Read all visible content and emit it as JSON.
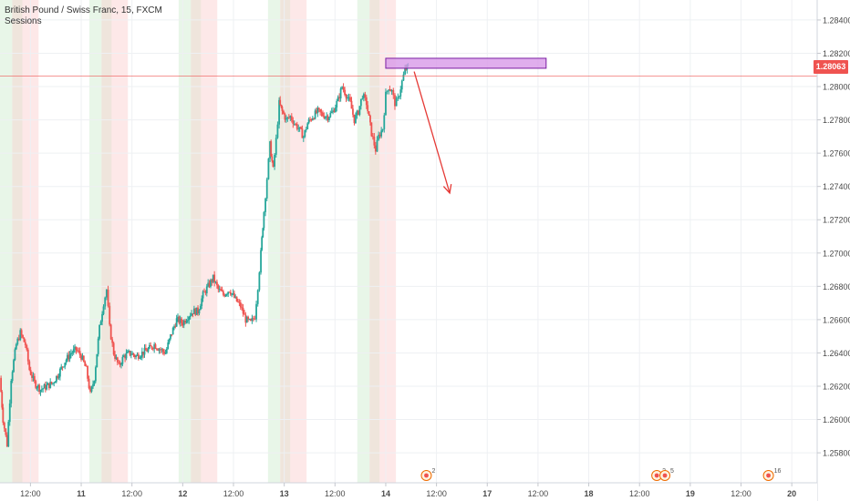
{
  "header": {
    "title": "British Pound / Swiss Franc, 15, FXCM",
    "indicator": "Sessions"
  },
  "price_axis": {
    "current_price": "1.28063"
  },
  "events": [
    {
      "x": "16.45",
      "label": "2",
      "icon": "calendar-event-icon"
    },
    {
      "x": "18.72",
      "label": "2",
      "icon": "calendar-event-icon"
    },
    {
      "x": "18.80",
      "label": "5",
      "icon": "calendar-event-icon"
    },
    {
      "x": "19.82",
      "label": "16",
      "icon": "calendar-event-icon"
    },
    {
      "x": "20.72",
      "label": "",
      "icon": "add-event-icon"
    }
  ],
  "colors": {
    "up": "#26a69a",
    "down": "#ef5350",
    "session_green": "#d6eed6",
    "session_brown": "#e2cfbf",
    "session_red": "#fbd5d5",
    "zone_fill": "#d89ae8",
    "zone_stroke": "#7b1fa2",
    "arrow": "#e53935",
    "price_line": "#ef5350"
  },
  "chart_data": {
    "type": "candlestick",
    "title": "British Pound / Swiss Franc, 15, FXCM",
    "timeframe": "15",
    "x_unit": "day of month (fractional)",
    "x_ticks": [
      "12:00",
      "11",
      "12:00",
      "12",
      "12:00",
      "13",
      "12:00",
      "14",
      "12:00",
      "17",
      "12:00",
      "18",
      "12:00",
      "19",
      "12:00",
      "20"
    ],
    "x_tick_values": [
      10.5,
      11,
      11.5,
      12,
      12.5,
      13,
      13.5,
      14,
      14.5,
      15,
      15.5,
      16,
      16.5,
      17,
      17.5,
      18
    ],
    "y_ticks": [
      "1.25800",
      "1.26000",
      "1.26200",
      "1.26400",
      "1.26600",
      "1.26800",
      "1.27000",
      "1.27200",
      "1.27400",
      "1.27600",
      "1.27800",
      "1.28000",
      "1.28200",
      "1.28400"
    ],
    "ylim": [
      1.2562,
      1.2852
    ],
    "xlim": [
      10.2,
      18.25
    ],
    "grid": true,
    "last_price": 1.28063,
    "price_path": [
      [
        10.2,
        1.2625
      ],
      [
        10.23,
        1.26
      ],
      [
        10.27,
        1.2585
      ],
      [
        10.31,
        1.2625
      ],
      [
        10.36,
        1.2645
      ],
      [
        10.4,
        1.2652
      ],
      [
        10.45,
        1.2645
      ],
      [
        10.49,
        1.263
      ],
      [
        10.54,
        1.2622
      ],
      [
        10.6,
        1.2618
      ],
      [
        10.66,
        1.262
      ],
      [
        10.72,
        1.2622
      ],
      [
        10.78,
        1.2628
      ],
      [
        10.84,
        1.2635
      ],
      [
        10.9,
        1.264
      ],
      [
        10.95,
        1.2642
      ],
      [
        11.0,
        1.2638
      ],
      [
        11.05,
        1.263
      ],
      [
        11.09,
        1.2615
      ],
      [
        11.13,
        1.2625
      ],
      [
        11.18,
        1.2655
      ],
      [
        11.22,
        1.267
      ],
      [
        11.25,
        1.2678
      ],
      [
        11.28,
        1.2655
      ],
      [
        11.32,
        1.264
      ],
      [
        11.37,
        1.2632
      ],
      [
        11.42,
        1.2638
      ],
      [
        11.48,
        1.264
      ],
      [
        11.54,
        1.2638
      ],
      [
        11.6,
        1.264
      ],
      [
        11.66,
        1.2642
      ],
      [
        11.72,
        1.2645
      ],
      [
        11.78,
        1.2642
      ],
      [
        11.83,
        1.264
      ],
      [
        11.88,
        1.265
      ],
      [
        11.94,
        1.266
      ],
      [
        12.0,
        1.2658
      ],
      [
        12.05,
        1.2662
      ],
      [
        12.1,
        1.2665
      ],
      [
        12.15,
        1.2665
      ],
      [
        12.2,
        1.2675
      ],
      [
        12.25,
        1.268
      ],
      [
        12.3,
        1.2685
      ],
      [
        12.35,
        1.2678
      ],
      [
        12.4,
        1.2675
      ],
      [
        12.46,
        1.2678
      ],
      [
        12.52,
        1.2672
      ],
      [
        12.57,
        1.2668
      ],
      [
        12.62,
        1.266
      ],
      [
        12.67,
        1.2658
      ],
      [
        12.71,
        1.2662
      ],
      [
        12.74,
        1.268
      ],
      [
        12.77,
        1.27
      ],
      [
        12.8,
        1.2725
      ],
      [
        12.83,
        1.2745
      ],
      [
        12.86,
        1.2765
      ],
      [
        12.89,
        1.275
      ],
      [
        12.92,
        1.2768
      ],
      [
        12.95,
        1.279
      ],
      [
        12.98,
        1.2785
      ],
      [
        13.02,
        1.278
      ],
      [
        13.06,
        1.2782
      ],
      [
        13.1,
        1.2778
      ],
      [
        13.14,
        1.2775
      ],
      [
        13.19,
        1.277
      ],
      [
        13.23,
        1.2778
      ],
      [
        13.28,
        1.2782
      ],
      [
        13.33,
        1.2785
      ],
      [
        13.38,
        1.2783
      ],
      [
        13.43,
        1.2782
      ],
      [
        13.48,
        1.2785
      ],
      [
        13.53,
        1.2792
      ],
      [
        13.57,
        1.28
      ],
      [
        13.61,
        1.2795
      ],
      [
        13.65,
        1.279
      ],
      [
        13.69,
        1.278
      ],
      [
        13.73,
        1.2785
      ],
      [
        13.77,
        1.2795
      ],
      [
        13.81,
        1.279
      ],
      [
        13.86,
        1.2772
      ],
      [
        13.9,
        1.2762
      ],
      [
        13.93,
        1.277
      ],
      [
        13.97,
        1.2775
      ],
      [
        14.0,
        1.2795
      ],
      [
        14.03,
        1.28
      ],
      [
        14.06,
        1.2797
      ],
      [
        14.09,
        1.279
      ],
      [
        14.12,
        1.2792
      ],
      [
        14.16,
        1.2803
      ],
      [
        14.19,
        1.281
      ],
      [
        14.22,
        1.2812
      ]
    ],
    "sessions": [
      {
        "type": "asia",
        "start": 10.2,
        "end": 10.32
      },
      {
        "type": "overlap",
        "start": 10.32,
        "end": 10.42
      },
      {
        "type": "us",
        "start": 10.42,
        "end": 10.58
      },
      {
        "type": "asia",
        "start": 11.08,
        "end": 11.2
      },
      {
        "type": "overlap",
        "start": 11.2,
        "end": 11.3
      },
      {
        "type": "us",
        "start": 11.3,
        "end": 11.46
      },
      {
        "type": "asia",
        "start": 11.96,
        "end": 12.08
      },
      {
        "type": "overlap",
        "start": 12.08,
        "end": 12.18
      },
      {
        "type": "us",
        "start": 12.18,
        "end": 12.34
      },
      {
        "type": "asia",
        "start": 12.84,
        "end": 12.96
      },
      {
        "type": "overlap",
        "start": 12.96,
        "end": 13.06
      },
      {
        "type": "us",
        "start": 13.06,
        "end": 13.22
      },
      {
        "type": "asia",
        "start": 13.72,
        "end": 13.84
      },
      {
        "type": "overlap",
        "start": 13.84,
        "end": 13.94
      },
      {
        "type": "us",
        "start": 13.94,
        "end": 14.1
      }
    ],
    "annotations": [
      {
        "type": "rectangle",
        "x1": 14.0,
        "x2": 15.58,
        "y1": 1.2811,
        "y2": 1.2817
      },
      {
        "type": "arrow",
        "x1": 14.28,
        "y1": 1.2809,
        "x2": 14.63,
        "y2": 1.2736
      }
    ]
  }
}
